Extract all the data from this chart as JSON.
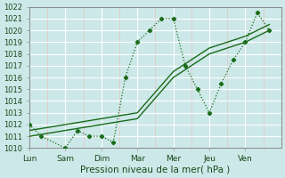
{
  "title": "",
  "xlabel": "Pression niveau de la mer( hPa )",
  "ylabel": "",
  "background_color": "#cce8e8",
  "grid_color": "#ffffff",
  "line_color": "#1a6b1a",
  "ylim": [
    1010,
    1022
  ],
  "yticks": [
    1010,
    1011,
    1012,
    1013,
    1014,
    1015,
    1016,
    1017,
    1018,
    1019,
    1020,
    1021,
    1022
  ],
  "day_labels": [
    "Lun",
    "Sam",
    "Dim",
    "Mar",
    "Mer",
    "Jeu",
    "Ven"
  ],
  "day_positions": [
    0,
    12,
    24,
    36,
    48,
    60,
    72
  ],
  "series1_x": [
    0,
    4,
    12,
    16,
    20,
    24,
    28,
    32,
    36,
    40,
    44,
    48,
    52,
    56,
    60,
    64,
    68,
    72,
    76,
    80
  ],
  "series1_y": [
    1012,
    1011,
    1010,
    1011.5,
    1011,
    1011,
    1010.5,
    1016,
    1019,
    1020,
    1021,
    1021,
    1017,
    1015,
    1013,
    1015.5,
    1017.5,
    1019,
    1021.5,
    1020
  ],
  "series2_x": [
    0,
    12,
    24,
    36,
    48,
    60,
    72,
    80
  ],
  "series2_y": [
    1011,
    1011.5,
    1012,
    1012.5,
    1016,
    1018,
    1019,
    1020
  ],
  "series3_x": [
    0,
    12,
    24,
    36,
    48,
    60,
    72,
    80
  ],
  "series3_y": [
    1011.5,
    1012,
    1012.5,
    1013,
    1016.5,
    1018.5,
    1019.5,
    1020.5
  ],
  "xmax": 84
}
